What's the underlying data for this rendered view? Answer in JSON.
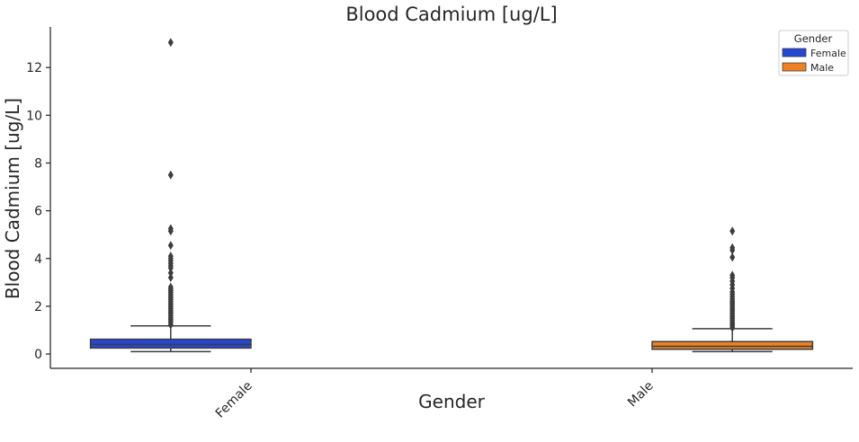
{
  "chart_data": {
    "type": "box",
    "title": "Blood Cadmium [ug/L]",
    "xlabel": "Gender",
    "ylabel": "Blood Cadmium [ug/L]",
    "categories": [
      "Female",
      "Male"
    ],
    "ylim": [
      -0.6,
      13.7
    ],
    "yticks": [
      0,
      2,
      4,
      6,
      8,
      10,
      12
    ],
    "grid": false,
    "legend": {
      "title": "Gender",
      "position": "top-right",
      "entries": [
        {
          "label": "Female",
          "color": "#2547d4"
        },
        {
          "label": "Male",
          "color": "#ee8123"
        }
      ]
    },
    "series": [
      {
        "name": "Female",
        "color": "#2547d4",
        "category": "Female",
        "whisker_low": 0.1,
        "q1": 0.25,
        "median": 0.4,
        "q3": 0.62,
        "whisker_high": 1.18,
        "outliers": [
          1.22,
          1.3,
          1.38,
          1.45,
          1.52,
          1.6,
          1.68,
          1.75,
          1.82,
          1.9,
          1.97,
          2.05,
          2.12,
          2.2,
          2.28,
          2.35,
          2.42,
          2.5,
          2.58,
          2.65,
          2.72,
          2.8,
          3.2,
          3.4,
          3.6,
          3.7,
          3.8,
          3.9,
          4.0,
          4.1,
          4.55,
          5.15,
          5.25,
          7.5,
          13.05
        ]
      },
      {
        "name": "Male",
        "color": "#ee8123",
        "category": "Male",
        "whisker_low": 0.1,
        "q1": 0.2,
        "median": 0.32,
        "q3": 0.52,
        "whisker_high": 1.06,
        "outliers": [
          1.1,
          1.18,
          1.25,
          1.32,
          1.4,
          1.48,
          1.55,
          1.62,
          1.7,
          1.78,
          1.85,
          1.92,
          2.0,
          2.08,
          2.15,
          2.22,
          2.3,
          2.4,
          2.5,
          2.6,
          2.75,
          2.9,
          3.05,
          3.2,
          3.3,
          4.05,
          4.35,
          4.45,
          5.15
        ]
      }
    ]
  }
}
